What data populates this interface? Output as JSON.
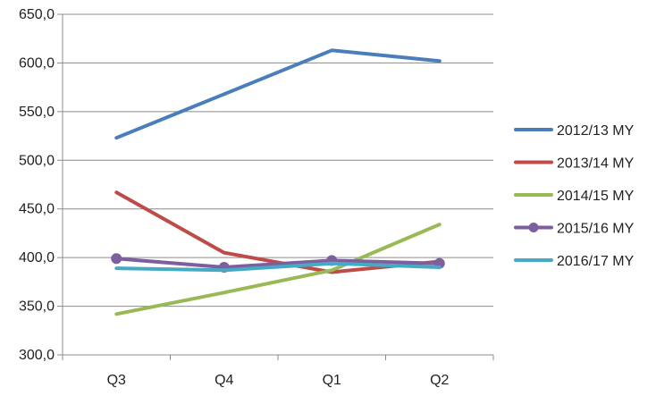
{
  "chart_data": {
    "type": "line",
    "categories": [
      "Q3",
      "Q4",
      "Q1",
      "Q2"
    ],
    "ylim": [
      300,
      650
    ],
    "yticks": [
      "300,0",
      "350,0",
      "400,0",
      "450,0",
      "500,0",
      "550,0",
      "600,0",
      "650,0"
    ],
    "ytick_values": [
      300,
      350,
      400,
      450,
      500,
      550,
      600,
      650
    ],
    "grid": true,
    "legend_position": "right",
    "series": [
      {
        "name": "2012/13 MY",
        "color": "#4a7ebb",
        "marker": false,
        "values": [
          523,
          568,
          613,
          602
        ]
      },
      {
        "name": "2013/14 MY",
        "color": "#be4b48",
        "marker": false,
        "values": [
          467,
          405,
          385,
          396
        ]
      },
      {
        "name": "2014/15 MY",
        "color": "#98b954",
        "marker": false,
        "values": [
          342,
          364,
          387,
          434
        ]
      },
      {
        "name": "2015/16 MY",
        "color": "#7d5fa0",
        "marker": true,
        "values": [
          399,
          390,
          397,
          394
        ]
      },
      {
        "name": "2016/17 MY",
        "color": "#46aac5",
        "marker": false,
        "values": [
          389,
          387,
          394,
          390
        ]
      }
    ]
  }
}
